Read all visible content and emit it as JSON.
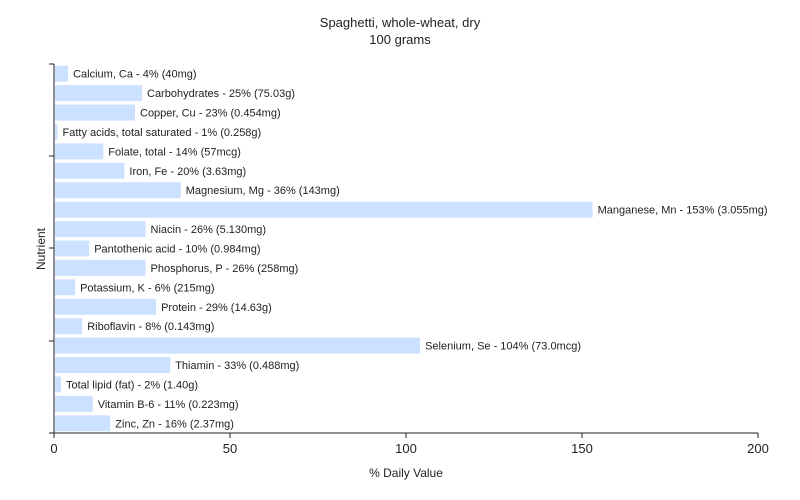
{
  "chart_data": {
    "type": "bar",
    "orientation": "horizontal",
    "title": "Spaghetti, whole-wheat, dry",
    "subtitle": "100 grams",
    "xlabel": "% Daily Value",
    "ylabel": "Nutrient",
    "xlim": [
      0,
      200
    ],
    "xticks": [
      0,
      50,
      100,
      150,
      200
    ],
    "grid": false,
    "bar_color": "#cce0ff",
    "categories": [
      "Calcium, Ca",
      "Carbohydrates",
      "Copper, Cu",
      "Fatty acids, total saturated",
      "Folate, total",
      "Iron, Fe",
      "Magnesium, Mg",
      "Manganese, Mn",
      "Niacin",
      "Pantothenic acid",
      "Phosphorus, P",
      "Potassium, K",
      "Protein",
      "Riboflavin",
      "Selenium, Se",
      "Thiamin",
      "Total lipid (fat)",
      "Vitamin B-6",
      "Zinc, Zn"
    ],
    "values": [
      4,
      25,
      23,
      1,
      14,
      20,
      36,
      153,
      26,
      10,
      26,
      6,
      29,
      8,
      104,
      33,
      2,
      11,
      16
    ],
    "labels": [
      "Calcium, Ca - 4% (40mg)",
      "Carbohydrates - 25% (75.03g)",
      "Copper, Cu - 23% (0.454mg)",
      "Fatty acids, total saturated - 1% (0.258g)",
      "Folate, total - 14% (57mcg)",
      "Iron, Fe - 20% (3.63mg)",
      "Magnesium, Mg - 36% (143mg)",
      "Manganese, Mn - 153% (3.055mg)",
      "Niacin - 26% (5.130mg)",
      "Pantothenic acid - 10% (0.984mg)",
      "Phosphorus, P - 26% (258mg)",
      "Potassium, K - 6% (215mg)",
      "Protein - 29% (14.63g)",
      "Riboflavin - 8% (0.143mg)",
      "Selenium, Se - 104% (73.0mcg)",
      "Thiamin - 33% (0.488mg)",
      "Total lipid (fat) - 2% (1.40g)",
      "Vitamin B-6 - 11% (0.223mg)",
      "Zinc, Zn - 16% (2.37mg)"
    ]
  }
}
